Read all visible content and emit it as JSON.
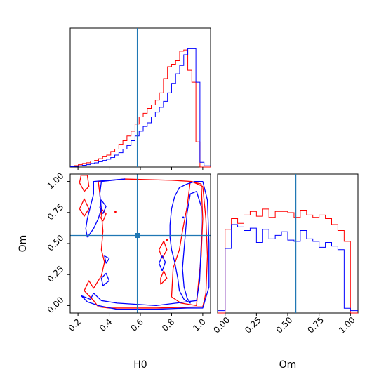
{
  "chart_data": {
    "type": "corner",
    "parameters": [
      "H0",
      "Om"
    ],
    "truth": {
      "H0": 0.58,
      "Om": 0.565
    },
    "colors": {
      "sample_a": "#ff0000",
      "sample_b": "#0000ff",
      "truth": "#1f77b4"
    },
    "axes": {
      "H0": {
        "range": [
          0.15,
          1.05
        ],
        "ticks": [
          0.2,
          0.4,
          0.6,
          0.8,
          1.0
        ],
        "tick_labels": [
          "0.2",
          "0.4",
          "0.6",
          "0.8",
          "1.0"
        ]
      },
      "Om": {
        "range": [
          -0.06,
          1.06
        ],
        "ticks": [
          0.0,
          0.25,
          0.5,
          0.75,
          1.0
        ],
        "tick_labels": [
          "0.00",
          "0.25",
          "0.50",
          "0.75",
          "1.00"
        ]
      }
    },
    "hist_H0": {
      "bins": [
        0.15,
        0.176,
        0.202,
        0.228,
        0.254,
        0.28,
        0.306,
        0.332,
        0.358,
        0.384,
        0.41,
        0.436,
        0.462,
        0.488,
        0.514,
        0.54,
        0.566,
        0.592,
        0.618,
        0.644,
        0.67,
        0.696,
        0.722,
        0.748,
        0.774,
        0.8,
        0.826,
        0.852,
        0.878,
        0.904,
        0.93,
        0.956,
        0.982,
        1.008,
        1.05
      ],
      "sample_a": [
        0.008,
        0.012,
        0.02,
        0.03,
        0.036,
        0.05,
        0.055,
        0.07,
        0.09,
        0.1,
        0.13,
        0.15,
        0.19,
        0.22,
        0.26,
        0.3,
        0.36,
        0.42,
        0.45,
        0.49,
        0.52,
        0.56,
        0.62,
        0.74,
        0.84,
        0.86,
        0.89,
        0.97,
        0.98,
        0.81,
        0.71,
        0.21,
        0.0,
        0.0
      ],
      "sample_b": [
        0.004,
        0.006,
        0.01,
        0.015,
        0.02,
        0.03,
        0.035,
        0.045,
        0.055,
        0.065,
        0.08,
        0.1,
        0.12,
        0.15,
        0.18,
        0.22,
        0.26,
        0.3,
        0.34,
        0.37,
        0.42,
        0.46,
        0.5,
        0.55,
        0.62,
        0.7,
        0.78,
        0.85,
        0.94,
        0.99,
        0.99,
        0.71,
        0.04,
        0.01
      ]
    },
    "hist_Om": {
      "bins": [
        -0.06,
        0.0,
        0.05,
        0.1,
        0.15,
        0.2,
        0.25,
        0.3,
        0.35,
        0.4,
        0.45,
        0.5,
        0.55,
        0.6,
        0.65,
        0.7,
        0.75,
        0.8,
        0.85,
        0.9,
        0.95,
        1.0,
        1.06
      ],
      "sample_a": [
        0.0,
        0.7,
        0.79,
        0.75,
        0.82,
        0.85,
        0.81,
        0.87,
        0.8,
        0.85,
        0.85,
        0.84,
        0.8,
        0.86,
        0.82,
        0.8,
        0.82,
        0.79,
        0.74,
        0.69,
        0.6,
        0.0
      ],
      "sample_b": [
        0.02,
        0.54,
        0.74,
        0.72,
        0.69,
        0.71,
        0.59,
        0.7,
        0.62,
        0.65,
        0.68,
        0.61,
        0.6,
        0.69,
        0.62,
        0.6,
        0.55,
        0.59,
        0.56,
        0.53,
        0.04,
        0.02
      ]
    },
    "contours_sample_a": [
      [
        [
          0.24,
          0.12
        ],
        [
          0.27,
          0.2
        ],
        [
          0.3,
          0.14
        ],
        [
          0.35,
          0.24
        ],
        [
          0.37,
          0.35
        ],
        [
          0.35,
          0.45
        ],
        [
          0.36,
          0.6
        ],
        [
          0.35,
          0.75
        ],
        [
          0.34,
          0.9
        ],
        [
          0.33,
          1.0
        ],
        [
          0.5,
          1.02
        ],
        [
          0.8,
          1.01
        ],
        [
          0.93,
          1.0
        ],
        [
          1.0,
          0.96
        ],
        [
          1.02,
          0.7
        ],
        [
          1.03,
          0.4
        ],
        [
          1.02,
          0.1
        ],
        [
          1.0,
          -0.01
        ],
        [
          0.7,
          -0.02
        ],
        [
          0.4,
          -0.02
        ],
        [
          0.33,
          -0.01
        ],
        [
          0.3,
          0.04
        ],
        [
          0.24,
          0.12
        ]
      ],
      [
        [
          0.8,
          0.07
        ],
        [
          0.81,
          0.3
        ],
        [
          0.85,
          0.45
        ],
        [
          0.87,
          0.6
        ],
        [
          0.9,
          0.8
        ],
        [
          0.92,
          1.0
        ],
        [
          0.99,
          0.98
        ],
        [
          1.0,
          0.7
        ],
        [
          0.99,
          0.4
        ],
        [
          0.97,
          0.15
        ],
        [
          0.96,
          0.0
        ],
        [
          0.86,
          0.02
        ],
        [
          0.8,
          0.07
        ]
      ],
      [
        [
          0.21,
          0.78
        ],
        [
          0.24,
          0.72
        ],
        [
          0.27,
          0.78
        ],
        [
          0.24,
          0.86
        ],
        [
          0.21,
          0.78
        ]
      ],
      [
        [
          0.21,
          0.99
        ],
        [
          0.24,
          0.92
        ],
        [
          0.27,
          0.96
        ],
        [
          0.26,
          1.05
        ],
        [
          0.22,
          1.05
        ],
        [
          0.21,
          0.99
        ]
      ],
      [
        [
          0.73,
          0.17
        ],
        [
          0.77,
          0.22
        ],
        [
          0.75,
          0.28
        ],
        [
          0.73,
          0.22
        ],
        [
          0.73,
          0.17
        ]
      ],
      [
        [
          0.74,
          0.38
        ],
        [
          0.77,
          0.45
        ],
        [
          0.75,
          0.52
        ],
        [
          0.72,
          0.45
        ],
        [
          0.74,
          0.38
        ]
      ],
      [
        [
          0.36,
          0.68
        ],
        [
          0.38,
          0.74
        ],
        [
          0.35,
          0.78
        ],
        [
          0.34,
          0.72
        ],
        [
          0.36,
          0.68
        ]
      ]
    ],
    "contours_sample_b": [
      [
        [
          0.22,
          0.08
        ],
        [
          0.26,
          0.03
        ],
        [
          0.33,
          0.0
        ],
        [
          0.45,
          -0.03
        ],
        [
          0.7,
          -0.03
        ],
        [
          0.9,
          -0.02
        ],
        [
          1.0,
          -0.02
        ],
        [
          1.04,
          0.15
        ],
        [
          1.04,
          0.5
        ],
        [
          1.03,
          0.85
        ],
        [
          1.0,
          1.0
        ],
        [
          0.95,
          1.0
        ],
        [
          0.9,
          0.98
        ],
        [
          0.85,
          0.95
        ],
        [
          0.82,
          0.88
        ],
        [
          0.8,
          0.78
        ],
        [
          0.79,
          0.65
        ],
        [
          0.79,
          0.55
        ],
        [
          0.8,
          0.45
        ],
        [
          0.82,
          0.35
        ],
        [
          0.84,
          0.22
        ],
        [
          0.85,
          0.12
        ],
        [
          0.88,
          0.05
        ],
        [
          0.92,
          0.02
        ],
        [
          0.9,
          0.06
        ],
        [
          0.88,
          0.15
        ],
        [
          0.87,
          0.3
        ],
        [
          0.88,
          0.45
        ],
        [
          0.89,
          0.6
        ],
        [
          0.9,
          0.75
        ],
        [
          0.92,
          0.9
        ],
        [
          0.96,
          0.92
        ],
        [
          0.99,
          0.8
        ],
        [
          0.99,
          0.5
        ],
        [
          0.98,
          0.2
        ],
        [
          0.96,
          0.04
        ],
        [
          0.7,
          0.0
        ],
        [
          0.45,
          0.02
        ],
        [
          0.35,
          0.04
        ],
        [
          0.3,
          0.1
        ],
        [
          0.28,
          0.05
        ],
        [
          0.22,
          0.08
        ]
      ],
      [
        [
          0.26,
          0.55
        ],
        [
          0.3,
          0.62
        ],
        [
          0.33,
          0.7
        ],
        [
          0.35,
          0.78
        ],
        [
          0.34,
          0.9
        ],
        [
          0.35,
          1.0
        ],
        [
          0.5,
          1.02
        ],
        [
          0.3,
          1.0
        ],
        [
          0.3,
          0.9
        ],
        [
          0.28,
          0.8
        ],
        [
          0.26,
          0.7
        ],
        [
          0.25,
          0.62
        ],
        [
          0.26,
          0.55
        ]
      ],
      [
        [
          0.36,
          0.16
        ],
        [
          0.4,
          0.2
        ],
        [
          0.38,
          0.26
        ],
        [
          0.35,
          0.22
        ],
        [
          0.36,
          0.16
        ]
      ],
      [
        [
          0.38,
          0.34
        ],
        [
          0.4,
          0.38
        ],
        [
          0.37,
          0.4
        ],
        [
          0.38,
          0.34
        ]
      ],
      [
        [
          0.36,
          0.74
        ],
        [
          0.38,
          0.8
        ],
        [
          0.35,
          0.85
        ],
        [
          0.34,
          0.79
        ],
        [
          0.36,
          0.74
        ]
      ],
      [
        [
          0.74,
          0.28
        ],
        [
          0.76,
          0.35
        ],
        [
          0.74,
          0.4
        ],
        [
          0.72,
          0.34
        ],
        [
          0.74,
          0.28
        ]
      ]
    ]
  }
}
